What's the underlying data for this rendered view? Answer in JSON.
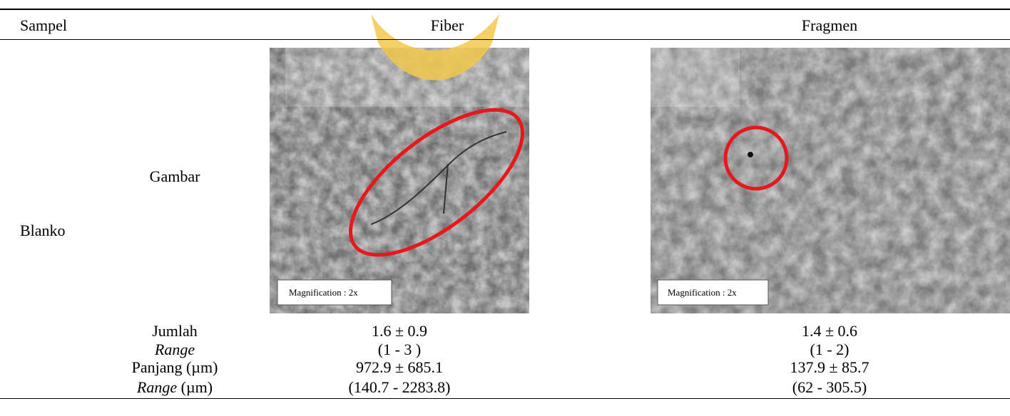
{
  "header": {
    "sample": "Sampel",
    "fiber": "Fiber",
    "fragment": "Fragmen"
  },
  "row_group": "Blanko",
  "image_label": "Gambar",
  "images": [
    {
      "caption": "Magnification : 2x"
    },
    {
      "caption": "Magnification : 2x"
    }
  ],
  "rows": [
    {
      "label": "Jumlah",
      "fiber": "1.6 ± 0.9",
      "fragment": "1.4 ± 0.6"
    },
    {
      "label_italic": "Range",
      "fiber": "(1 - 3 )",
      "fragment": "(1 - 2)"
    },
    {
      "label": "Panjang (µm)",
      "fiber": "972.9 ± 685.1",
      "fragment": "137.9 ± 85.7"
    },
    {
      "label_italic": "Range",
      "label": " (µm)",
      "fiber": "(140.7 - 2283.8)",
      "fragment": "(62 - 305.5)"
    }
  ]
}
